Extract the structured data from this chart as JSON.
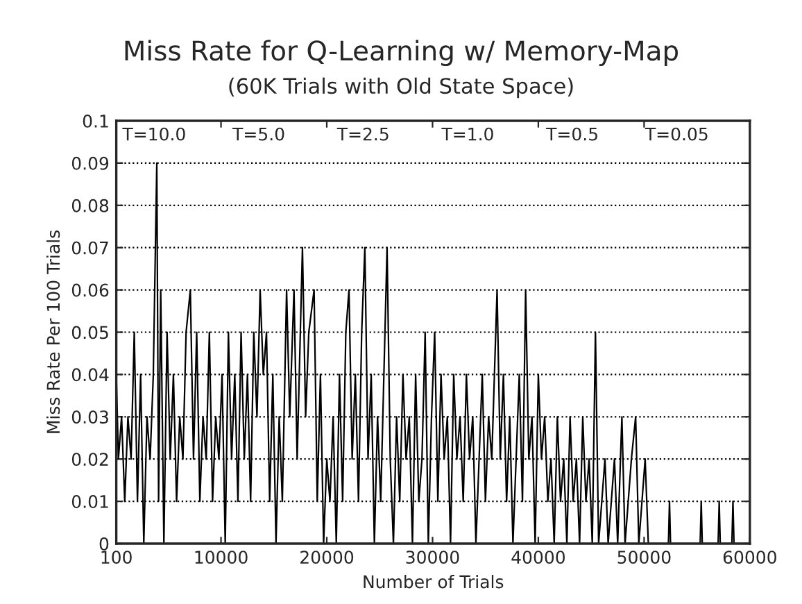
{
  "chart_data": {
    "type": "line",
    "title": "Miss Rate for Q-Learning w/ Memory-Map",
    "subtitle": "(60K Trials with Old State Space)",
    "xlabel": "Number of Trials",
    "ylabel": "Miss Rate Per 100 Trials",
    "xlim": [
      100,
      60000
    ],
    "xticks": [
      100,
      10000,
      20000,
      30000,
      40000,
      50000,
      60000
    ],
    "ylim": [
      0,
      0.1
    ],
    "yticks": [
      0,
      0.01,
      0.02,
      0.03,
      0.04,
      0.05,
      0.06,
      0.07,
      0.08,
      0.09,
      0.1
    ],
    "grid": "y",
    "marker": "none",
    "line_style": "solid",
    "annotations": [
      "T=10.0",
      "T=5.0",
      "T=2.5",
      "T=1.0",
      "T=0.5",
      "T=0.05"
    ],
    "series": [
      {
        "color": "#000000",
        "x": [
          100,
          300,
          600,
          900,
          1200,
          1500,
          1800,
          2100,
          2400,
          2700,
          3000,
          3300,
          3600,
          3930,
          4100,
          4300,
          4600,
          4900,
          5200,
          5500,
          5800,
          6100,
          6400,
          6700,
          7100,
          7400,
          7700,
          8000,
          8300,
          8600,
          8900,
          9200,
          9500,
          9800,
          10100,
          10400,
          10700,
          11000,
          11300,
          11600,
          11900,
          12200,
          12500,
          12800,
          13100,
          13400,
          13700,
          14000,
          14300,
          14600,
          14900,
          15200,
          15500,
          15800,
          16200,
          16500,
          16900,
          17200,
          17400,
          17700,
          18000,
          18300,
          18800,
          19100,
          19400,
          19700,
          20000,
          20300,
          20600,
          20900,
          21200,
          21500,
          21800,
          22100,
          22400,
          22700,
          23000,
          23300,
          23600,
          23900,
          24200,
          24500,
          24800,
          25100,
          25400,
          25700,
          26000,
          26300,
          26600,
          26900,
          27200,
          27500,
          27800,
          28100,
          28400,
          28700,
          29000,
          29300,
          29600,
          29900,
          30200,
          30500,
          30800,
          31100,
          31400,
          31700,
          32000,
          32300,
          32600,
          32900,
          33200,
          33500,
          33800,
          34100,
          34400,
          34700,
          35000,
          35300,
          35600,
          36100,
          36400,
          36700,
          37000,
          37300,
          37600,
          37900,
          38200,
          38500,
          38800,
          39100,
          39400,
          39700,
          40000,
          40300,
          40600,
          40900,
          41200,
          41500,
          41800,
          42100,
          42400,
          42700,
          43000,
          43300,
          43600,
          43900,
          44200,
          44500,
          44800,
          45100,
          45400,
          45700,
          46000,
          46300,
          46600,
          46900,
          47200,
          47500,
          47900,
          48200,
          48500,
          48800,
          49200,
          49500,
          49800,
          50100,
          50400,
          52300,
          52400,
          52500,
          55300,
          55400,
          55500,
          57000,
          57100,
          57200,
          58300,
          58400,
          58500,
          60000
        ],
        "values": [
          0.04,
          0.02,
          0.03,
          0.01,
          0.03,
          0.02,
          0.05,
          0.01,
          0.04,
          0,
          0.03,
          0.02,
          0.04,
          0.09,
          0.01,
          0.06,
          0,
          0.05,
          0.02,
          0.04,
          0.01,
          0.03,
          0.02,
          0.05,
          0.06,
          0.02,
          0.05,
          0.01,
          0.03,
          0.02,
          0.05,
          0.01,
          0.03,
          0.02,
          0.04,
          0,
          0.05,
          0.02,
          0.04,
          0.01,
          0.05,
          0.02,
          0.04,
          0.01,
          0.05,
          0.03,
          0.06,
          0.04,
          0.05,
          0.01,
          0.04,
          0,
          0.03,
          0.01,
          0.06,
          0.03,
          0.06,
          0.02,
          0.04,
          0.07,
          0.03,
          0.05,
          0.06,
          0.01,
          0.04,
          0,
          0.02,
          0.01,
          0.03,
          0,
          0.04,
          0.01,
          0.05,
          0.06,
          0.02,
          0.04,
          0.01,
          0.05,
          0.07,
          0.02,
          0.04,
          0,
          0.03,
          0.01,
          0.04,
          0.07,
          0.02,
          0,
          0.03,
          0.01,
          0.04,
          0.02,
          0.03,
          0,
          0.04,
          0.01,
          0.02,
          0.05,
          0,
          0.03,
          0.05,
          0.01,
          0.04,
          0.02,
          0.03,
          0,
          0.04,
          0.02,
          0.03,
          0.01,
          0.04,
          0.02,
          0.03,
          0,
          0.02,
          0.04,
          0.01,
          0.03,
          0.02,
          0.06,
          0.02,
          0.04,
          0.01,
          0.03,
          0,
          0.02,
          0.04,
          0.01,
          0.06,
          0.02,
          0.03,
          0,
          0.04,
          0.02,
          0.03,
          0.01,
          0.02,
          0,
          0.03,
          0.01,
          0.02,
          0,
          0.03,
          0.01,
          0.02,
          0,
          0.03,
          0.01,
          0.02,
          0,
          0.05,
          0,
          0.01,
          0.02,
          0,
          0.01,
          0.02,
          0,
          0.03,
          0,
          0.01,
          0.02,
          0.03,
          0,
          0.01,
          0.02,
          0,
          0,
          0.01,
          0,
          0,
          0.01,
          0,
          0,
          0.01,
          0,
          0,
          0.01,
          0,
          0
        ]
      }
    ]
  }
}
